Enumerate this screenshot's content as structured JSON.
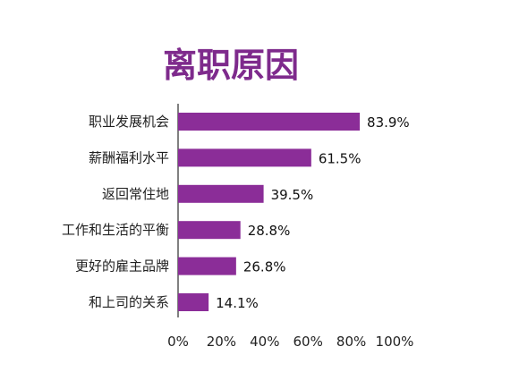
{
  "chart_data": {
    "type": "bar",
    "orientation": "horizontal",
    "title": "离职原因",
    "categories": [
      "职业发展机会",
      "薪酬福利水平",
      "返回常住地",
      "工作和生活的平衡",
      "更好的雇主品牌",
      "和上司的关系"
    ],
    "values": [
      83.9,
      61.5,
      39.5,
      28.8,
      26.8,
      14.1
    ],
    "value_labels": [
      "83.9%",
      "61.5%",
      "39.5%",
      "28.8%",
      "26.8%",
      "14.1%"
    ],
    "xlim": [
      0,
      100
    ],
    "x_ticks": [
      0,
      20,
      40,
      60,
      80,
      100
    ],
    "x_tick_labels": [
      "0%",
      "20%",
      "40%",
      "60%",
      "80%",
      "100%"
    ],
    "grid": false,
    "legend": "none",
    "colors": {
      "bar": "#8B2D98",
      "title": "#7E2A8C",
      "axis": "#000000"
    }
  }
}
